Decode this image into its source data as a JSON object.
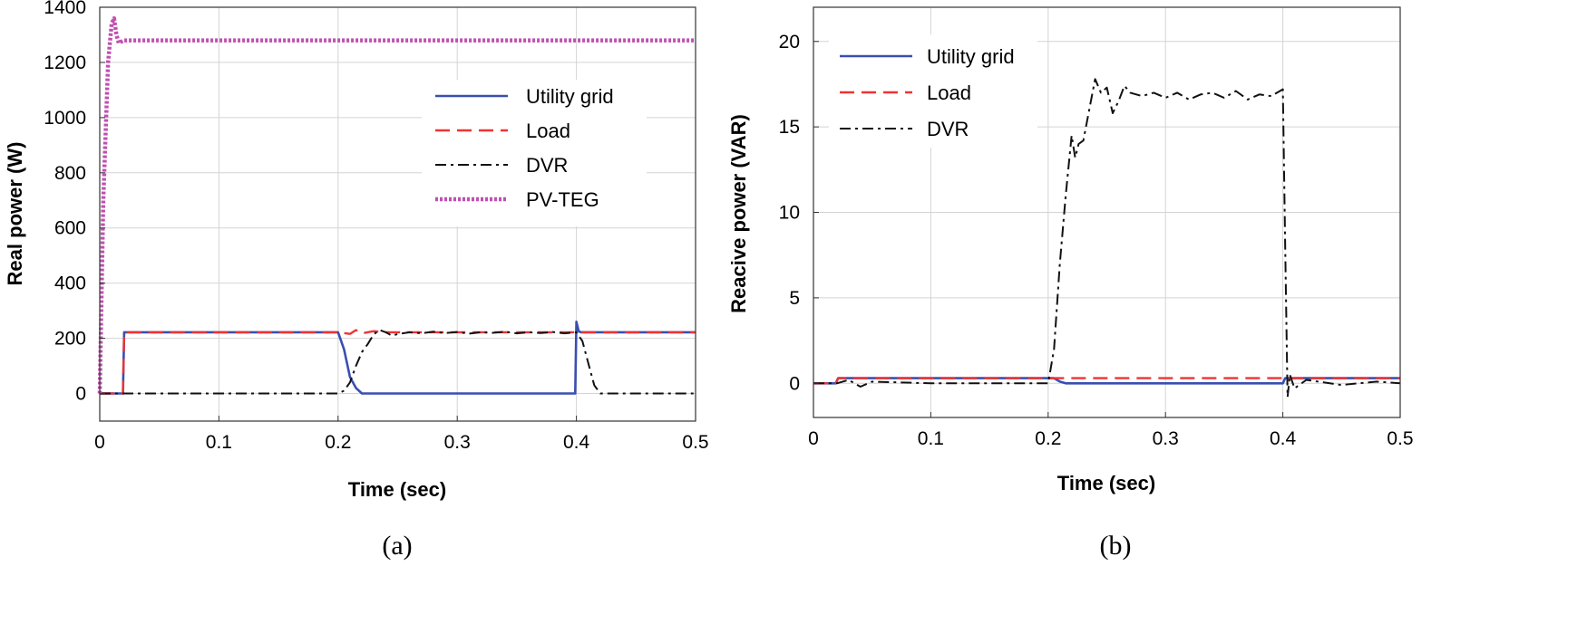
{
  "chart_data": [
    {
      "type": "line",
      "id": "a",
      "caption": "(a)",
      "xlabel": "Time (sec)",
      "ylabel": "Real power (W)",
      "xlim": [
        0,
        0.5
      ],
      "ylim": [
        -100,
        1400
      ],
      "xticks": [
        0,
        0.1,
        0.2,
        0.3,
        0.4,
        0.5
      ],
      "xtick_labels": [
        "0",
        "0.1",
        "0.2",
        "0.3",
        "0.4",
        "0.5"
      ],
      "yticks": [
        0,
        200,
        400,
        600,
        800,
        1000,
        1200,
        1400
      ],
      "ytick_labels": [
        "0",
        "200",
        "400",
        "600",
        "800",
        "1000",
        "1200",
        "1400"
      ],
      "grid": true,
      "legend_position": "upper-right",
      "series": [
        {
          "name": "Utility grid",
          "color": "#3a4fb0",
          "style": "solid",
          "x": [
            0,
            0.0195,
            0.0205,
            0.2,
            0.205,
            0.21,
            0.215,
            0.22,
            0.3,
            0.399,
            0.4,
            0.402,
            0.404,
            0.5
          ],
          "y": [
            0,
            0,
            222,
            222,
            160,
            60,
            20,
            0,
            0,
            0,
            260,
            225,
            222,
            222
          ]
        },
        {
          "name": "Load",
          "color": "#ee3333",
          "style": "dashed",
          "x": [
            0,
            0.0195,
            0.0205,
            0.2,
            0.21,
            0.215,
            0.22,
            0.23,
            0.24,
            0.3,
            0.4,
            0.5
          ],
          "y": [
            0,
            0,
            222,
            222,
            216,
            230,
            218,
            226,
            222,
            222,
            222,
            222
          ]
        },
        {
          "name": "DVR",
          "color": "#111111",
          "style": "dashdot",
          "x": [
            0,
            0.2,
            0.205,
            0.21,
            0.215,
            0.22,
            0.225,
            0.23,
            0.235,
            0.24,
            0.245,
            0.25,
            0.26,
            0.27,
            0.28,
            0.29,
            0.3,
            0.31,
            0.32,
            0.33,
            0.34,
            0.35,
            0.36,
            0.37,
            0.38,
            0.39,
            0.4,
            0.405,
            0.41,
            0.415,
            0.42,
            0.5
          ],
          "y": [
            0,
            0,
            10,
            40,
            100,
            150,
            180,
            215,
            230,
            222,
            210,
            215,
            222,
            218,
            224,
            219,
            223,
            217,
            222,
            220,
            224,
            218,
            222,
            219,
            223,
            218,
            222,
            190,
            110,
            30,
            0,
            0
          ]
        },
        {
          "name": "PV-TEG",
          "color": "#c050b0",
          "style": "dotted",
          "x": [
            0,
            0.003,
            0.007,
            0.01,
            0.012,
            0.014,
            0.016,
            0.02,
            0.03,
            0.5
          ],
          "y": [
            0,
            700,
            1200,
            1340,
            1360,
            1300,
            1270,
            1280,
            1280,
            1280
          ]
        }
      ]
    },
    {
      "type": "line",
      "id": "b",
      "caption": "(b)",
      "xlabel": "Time (sec)",
      "ylabel": "Reacive power (VAR)",
      "xlim": [
        0,
        0.5
      ],
      "ylim": [
        -2,
        22
      ],
      "xticks": [
        0,
        0.1,
        0.2,
        0.3,
        0.4,
        0.5
      ],
      "xtick_labels": [
        "0",
        "0.1",
        "0.2",
        "0.3",
        "0.4",
        "0.5"
      ],
      "yticks": [
        0,
        5,
        10,
        15,
        20
      ],
      "ytick_labels": [
        "0",
        "5",
        "10",
        "15",
        "20"
      ],
      "grid": true,
      "legend_position": "upper-left",
      "series": [
        {
          "name": "Utility grid",
          "color": "#3a4fb0",
          "style": "solid",
          "x": [
            0,
            0.019,
            0.021,
            0.2,
            0.205,
            0.21,
            0.215,
            0.3,
            0.4,
            0.402,
            0.404,
            0.5
          ],
          "y": [
            0,
            0,
            0.3,
            0.3,
            0.3,
            0.1,
            0,
            0,
            0,
            0.3,
            0.3,
            0.3
          ]
        },
        {
          "name": "Load",
          "color": "#ee3333",
          "style": "dashed",
          "x": [
            0,
            0.019,
            0.021,
            0.2,
            0.25,
            0.3,
            0.4,
            0.5
          ],
          "y": [
            0,
            0,
            0.3,
            0.3,
            0.3,
            0.3,
            0.3,
            0.3
          ]
        },
        {
          "name": "DVR",
          "color": "#111111",
          "style": "dashdot",
          "x": [
            0,
            0.02,
            0.03,
            0.04,
            0.05,
            0.1,
            0.2,
            0.205,
            0.21,
            0.215,
            0.22,
            0.223,
            0.226,
            0.23,
            0.235,
            0.24,
            0.245,
            0.25,
            0.255,
            0.26,
            0.265,
            0.27,
            0.28,
            0.29,
            0.3,
            0.31,
            0.32,
            0.33,
            0.34,
            0.35,
            0.36,
            0.37,
            0.38,
            0.39,
            0.4,
            0.402,
            0.404,
            0.406,
            0.41,
            0.42,
            0.45,
            0.48,
            0.5
          ],
          "y": [
            0,
            0,
            0.2,
            -0.2,
            0.1,
            0,
            0,
            2,
            7,
            11,
            14.5,
            13.2,
            14,
            14.2,
            16,
            17.8,
            17,
            17.3,
            15.8,
            16.5,
            17.4,
            17,
            16.8,
            17,
            16.7,
            17,
            16.6,
            16.9,
            17,
            16.7,
            17.1,
            16.6,
            16.9,
            16.8,
            17.2,
            8,
            -0.8,
            0.5,
            -0.3,
            0.2,
            -0.1,
            0.1,
            0
          ]
        }
      ]
    }
  ]
}
